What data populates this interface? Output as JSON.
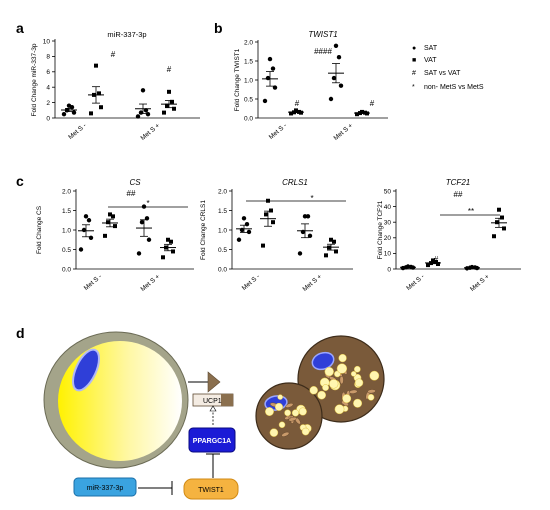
{
  "panel_labels": {
    "a": "a",
    "b": "b",
    "c": "c",
    "d": "d"
  },
  "legend": {
    "items": [
      {
        "marker": "●",
        "text": "SAT"
      },
      {
        "marker": "■",
        "text": "VAT"
      },
      {
        "marker": "#",
        "text": "SAT vs VAT"
      },
      {
        "marker": "*",
        "text": "non- MetS vs MetS"
      }
    ]
  },
  "chart_data": [
    {
      "panel": "a",
      "type": "scatter",
      "title": "miR-337-3p",
      "ylabel": "Fold Change miR-337-3p",
      "ylim": [
        0,
        10
      ],
      "yticks": [
        "0",
        "2",
        "4",
        "6",
        "8",
        "10"
      ],
      "group_labels": [
        "Met S -",
        "Met S +"
      ],
      "series": [
        {
          "name": "SAT",
          "group": "Met S -",
          "values": [
            0.5,
            0.7,
            1.0,
            1.4,
            1.6
          ]
        },
        {
          "name": "VAT",
          "group": "Met S -",
          "values": [
            0.6,
            1.4,
            3.0,
            3.2,
            6.8
          ]
        },
        {
          "name": "SAT",
          "group": "Met S +",
          "values": [
            0.2,
            0.5,
            0.7,
            1.0,
            3.6
          ]
        },
        {
          "name": "VAT",
          "group": "Met S +",
          "values": [
            0.7,
            1.2,
            1.6,
            2.1,
            3.4
          ]
        }
      ],
      "annotations": [
        "#",
        "#"
      ]
    },
    {
      "panel": "b",
      "type": "scatter",
      "title": "TWIST1",
      "ylabel": "Fold Change TWIST1",
      "ylim": [
        0,
        2.0
      ],
      "yticks": [
        "0.0",
        "0.5",
        "1.0",
        "1.5",
        "2.0"
      ],
      "group_labels": [
        "Met S -",
        "Met S +"
      ],
      "series": [
        {
          "name": "SAT",
          "group": "Met S -",
          "values": [
            0.45,
            0.8,
            1.05,
            1.3,
            1.55
          ]
        },
        {
          "name": "VAT",
          "group": "Met S -",
          "values": [
            0.12,
            0.14,
            0.15,
            0.16,
            0.2
          ]
        },
        {
          "name": "SAT",
          "group": "Met S +",
          "values": [
            0.5,
            0.85,
            1.05,
            1.6,
            1.9
          ]
        },
        {
          "name": "VAT",
          "group": "Met S +",
          "values": [
            0.1,
            0.12,
            0.13,
            0.14,
            0.16
          ]
        }
      ],
      "annotations": [
        "####",
        "#",
        "#"
      ]
    },
    {
      "panel": "c1",
      "type": "scatter",
      "title": "CS",
      "ylabel": "Fold Change CS",
      "ylim": [
        0,
        2.0
      ],
      "yticks": [
        "0.0",
        "0.5",
        "1.0",
        "1.5",
        "2.0"
      ],
      "group_labels": [
        "Met S -",
        "Met S +"
      ],
      "series": [
        {
          "name": "SAT",
          "group": "Met S -",
          "values": [
            0.5,
            0.8,
            1.0,
            1.25,
            1.35
          ]
        },
        {
          "name": "VAT",
          "group": "Met S -",
          "values": [
            0.85,
            1.1,
            1.2,
            1.35,
            1.4
          ]
        },
        {
          "name": "SAT",
          "group": "Met S +",
          "values": [
            0.4,
            0.75,
            1.2,
            1.3,
            1.6
          ]
        },
        {
          "name": "VAT",
          "group": "Met S +",
          "values": [
            0.3,
            0.45,
            0.55,
            0.7,
            0.75
          ]
        }
      ],
      "annotations": [
        "##",
        "*"
      ]
    },
    {
      "panel": "c2",
      "type": "scatter",
      "title": "CRLS1",
      "ylabel": "Fold Change CRLS1",
      "ylim": [
        0,
        2.0
      ],
      "yticks": [
        "0.0",
        "0.5",
        "1.0",
        "1.5",
        "2.0"
      ],
      "group_labels": [
        "Met S -",
        "Met S +"
      ],
      "series": [
        {
          "name": "SAT",
          "group": "Met S -",
          "values": [
            0.75,
            0.95,
            1.0,
            1.15,
            1.3
          ]
        },
        {
          "name": "VAT",
          "group": "Met S -",
          "values": [
            0.6,
            1.2,
            1.4,
            1.5,
            1.75
          ]
        },
        {
          "name": "SAT",
          "group": "Met S +",
          "values": [
            0.4,
            0.85,
            0.95,
            1.35,
            1.35
          ]
        },
        {
          "name": "VAT",
          "group": "Met S +",
          "values": [
            0.35,
            0.45,
            0.55,
            0.7,
            0.75
          ]
        }
      ],
      "annotations": [
        "*"
      ]
    },
    {
      "panel": "c3",
      "type": "scatter",
      "title": "TCF21",
      "ylabel": "Fold Change TCF21",
      "ylim": [
        0,
        50
      ],
      "yticks": [
        "0",
        "10",
        "20",
        "30",
        "40",
        "50"
      ],
      "group_labels": [
        "Met S -",
        "Met S +"
      ],
      "series": [
        {
          "name": "SAT",
          "group": "Met S -",
          "values": [
            0.6,
            0.9,
            1.1,
            1.3,
            1.6
          ]
        },
        {
          "name": "VAT",
          "group": "Met S -",
          "values": [
            2.5,
            3.2,
            3.8,
            4.5,
            5.5
          ]
        },
        {
          "name": "SAT",
          "group": "Met S +",
          "values": [
            0.4,
            0.6,
            0.8,
            1.0,
            1.2
          ]
        },
        {
          "name": "VAT",
          "group": "Met S +",
          "values": [
            21,
            26,
            30,
            33,
            38
          ]
        }
      ],
      "annotations": [
        "##",
        "#",
        "**"
      ]
    }
  ],
  "diagram": {
    "ucp1_label": "UCP1",
    "ppargc1a_label": "PPARGC1A",
    "twist1_label": "TWIST1",
    "mir_label": "miR-337-3p",
    "colors": {
      "ppargc1a": "#1b1bd6",
      "twist1": "#f5b340",
      "mir": "#3aa3e0",
      "arrow": "#8a6f4e"
    }
  }
}
